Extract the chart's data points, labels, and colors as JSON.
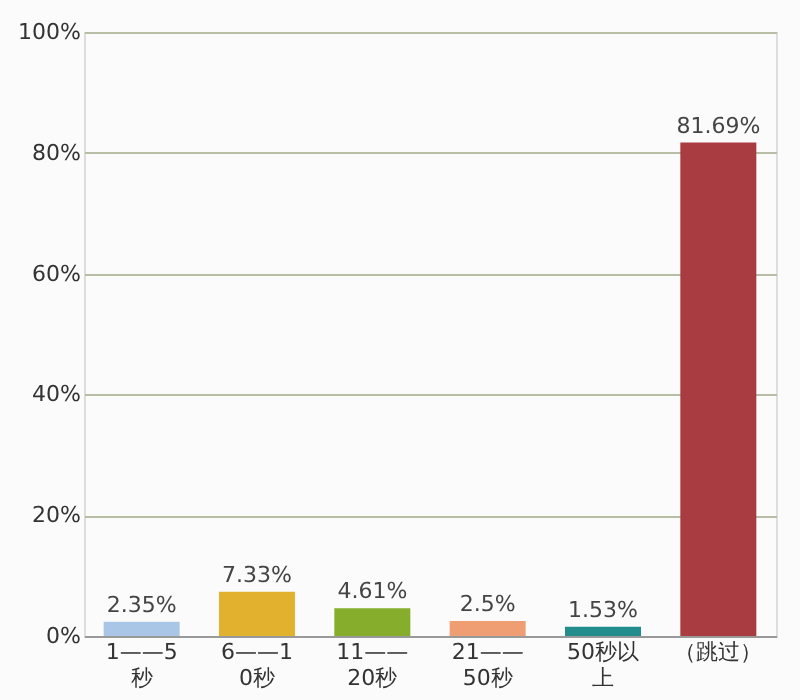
{
  "chart_data": {
    "type": "bar",
    "categories": [
      "1——5秒",
      "6——10秒",
      "11——20秒",
      "21——50秒",
      "50秒以上",
      "（跳过）"
    ],
    "values": [
      2.35,
      7.33,
      4.61,
      2.5,
      1.53,
      81.69
    ],
    "value_labels": [
      "2.35%",
      "7.33%",
      "4.61%",
      "2.5%",
      "1.53%",
      "81.69%"
    ],
    "colors": [
      "#a9c6e6",
      "#e2b22e",
      "#86ad2c",
      "#ee9e72",
      "#238c8c",
      "#a93c40"
    ],
    "ylim": [
      0,
      100
    ],
    "yticks": [
      {
        "value": 0,
        "label": "0%"
      },
      {
        "value": 20,
        "label": "20%"
      },
      {
        "value": 40,
        "label": "40%"
      },
      {
        "value": 60,
        "label": "60%"
      },
      {
        "value": 80,
        "label": "80%"
      },
      {
        "value": 100,
        "label": "100%"
      }
    ],
    "grid": "y"
  }
}
